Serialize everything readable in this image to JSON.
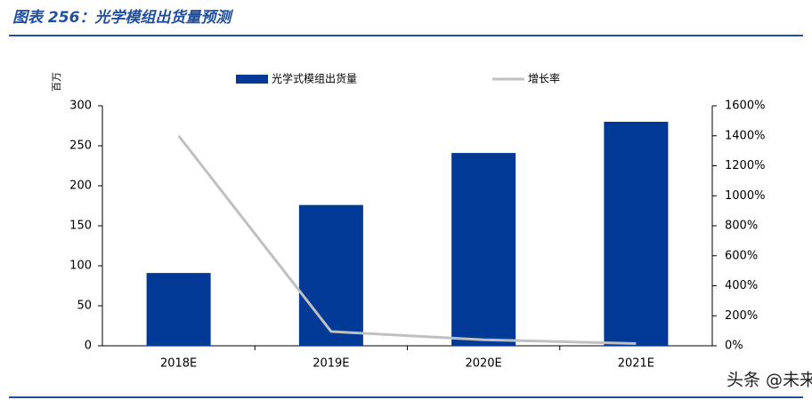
{
  "chart_data": {
    "type": "bar_line",
    "title": "图表 256：光学模组出货量预测",
    "y_label": "百万",
    "categories": [
      "2018E",
      "2019E",
      "2020E",
      "2021E"
    ],
    "series": [
      {
        "name": "光学式模组出货量",
        "type": "bar",
        "color": "#003a96",
        "values": [
          91,
          176,
          241,
          280
        ]
      },
      {
        "name": "增长率",
        "type": "line",
        "axis": "y2",
        "color": "#c0c0c0",
        "values": [
          1400,
          95,
          40,
          15
        ]
      }
    ],
    "ylim": [
      0,
      300
    ],
    "yticks": [
      0,
      50,
      100,
      150,
      200,
      250,
      300
    ],
    "y2lim": [
      0,
      1600
    ],
    "y2ticks": [
      {
        "value": 0,
        "label": "0%"
      },
      {
        "value": 200,
        "label": "200%"
      },
      {
        "value": 400,
        "label": "400%"
      },
      {
        "value": 600,
        "label": "600%"
      },
      {
        "value": 800,
        "label": "800%"
      },
      {
        "value": 1000,
        "label": "1000%"
      },
      {
        "value": 1200,
        "label": "1200%"
      },
      {
        "value": 1400,
        "label": "1400%"
      },
      {
        "value": 1600,
        "label": "1600%"
      }
    ],
    "grid": false,
    "legend": "top",
    "watermark": "头条 @未来智库"
  }
}
